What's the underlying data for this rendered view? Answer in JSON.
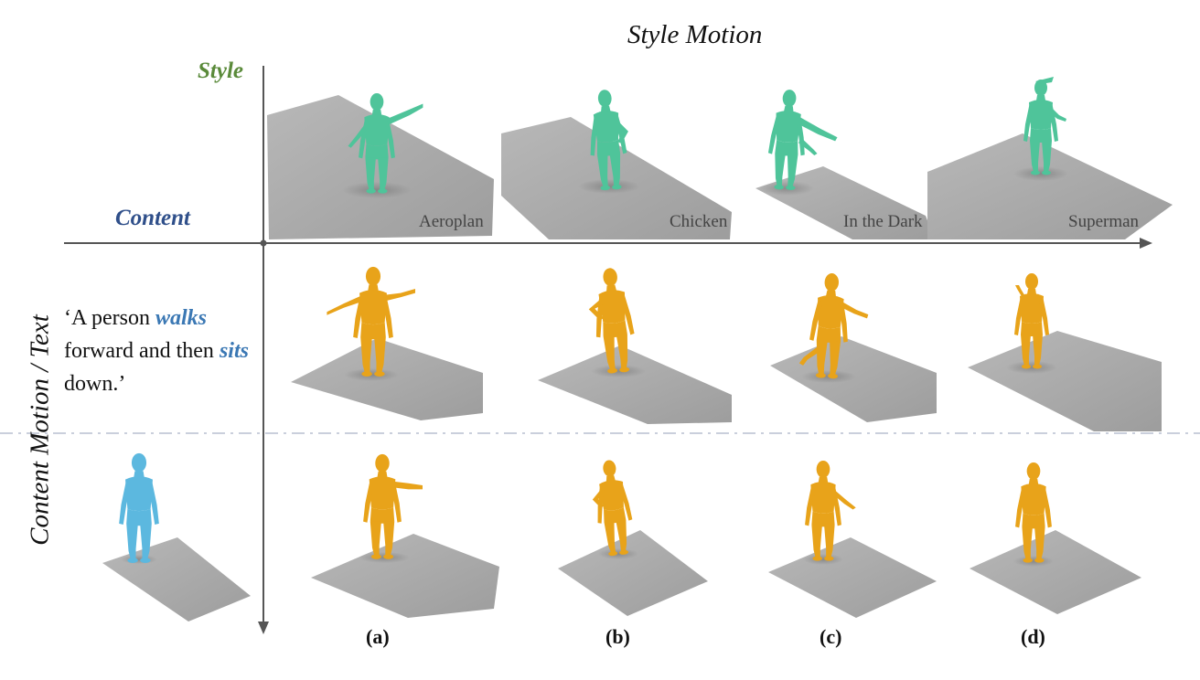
{
  "figure": {
    "title": "Style Motion",
    "row_label_style": "Style",
    "row_label_content": "Content",
    "vertical_label": "Content Motion / Text",
    "prompt": {
      "part1": "‘A person ",
      "kw1": "walks",
      "part2": " forward and then ",
      "kw2": "sits",
      "part3": " down.’"
    },
    "styles": [
      "Aeroplan",
      "Chicken",
      "In the Dark",
      "Superman"
    ],
    "columns": [
      "(a)",
      "(b)",
      "(c)",
      "(d)"
    ]
  },
  "colors": {
    "style_figure": "#4fc49a",
    "output_figure": "#e8a31a",
    "content_figure": "#5cb8df",
    "floor": "#a9a9a9",
    "axis": "#555555",
    "style_label": "#5a8a3a",
    "content_label": "#2f4f8a",
    "keyword": "#3b78b4",
    "divider": "#b9bfd0"
  }
}
